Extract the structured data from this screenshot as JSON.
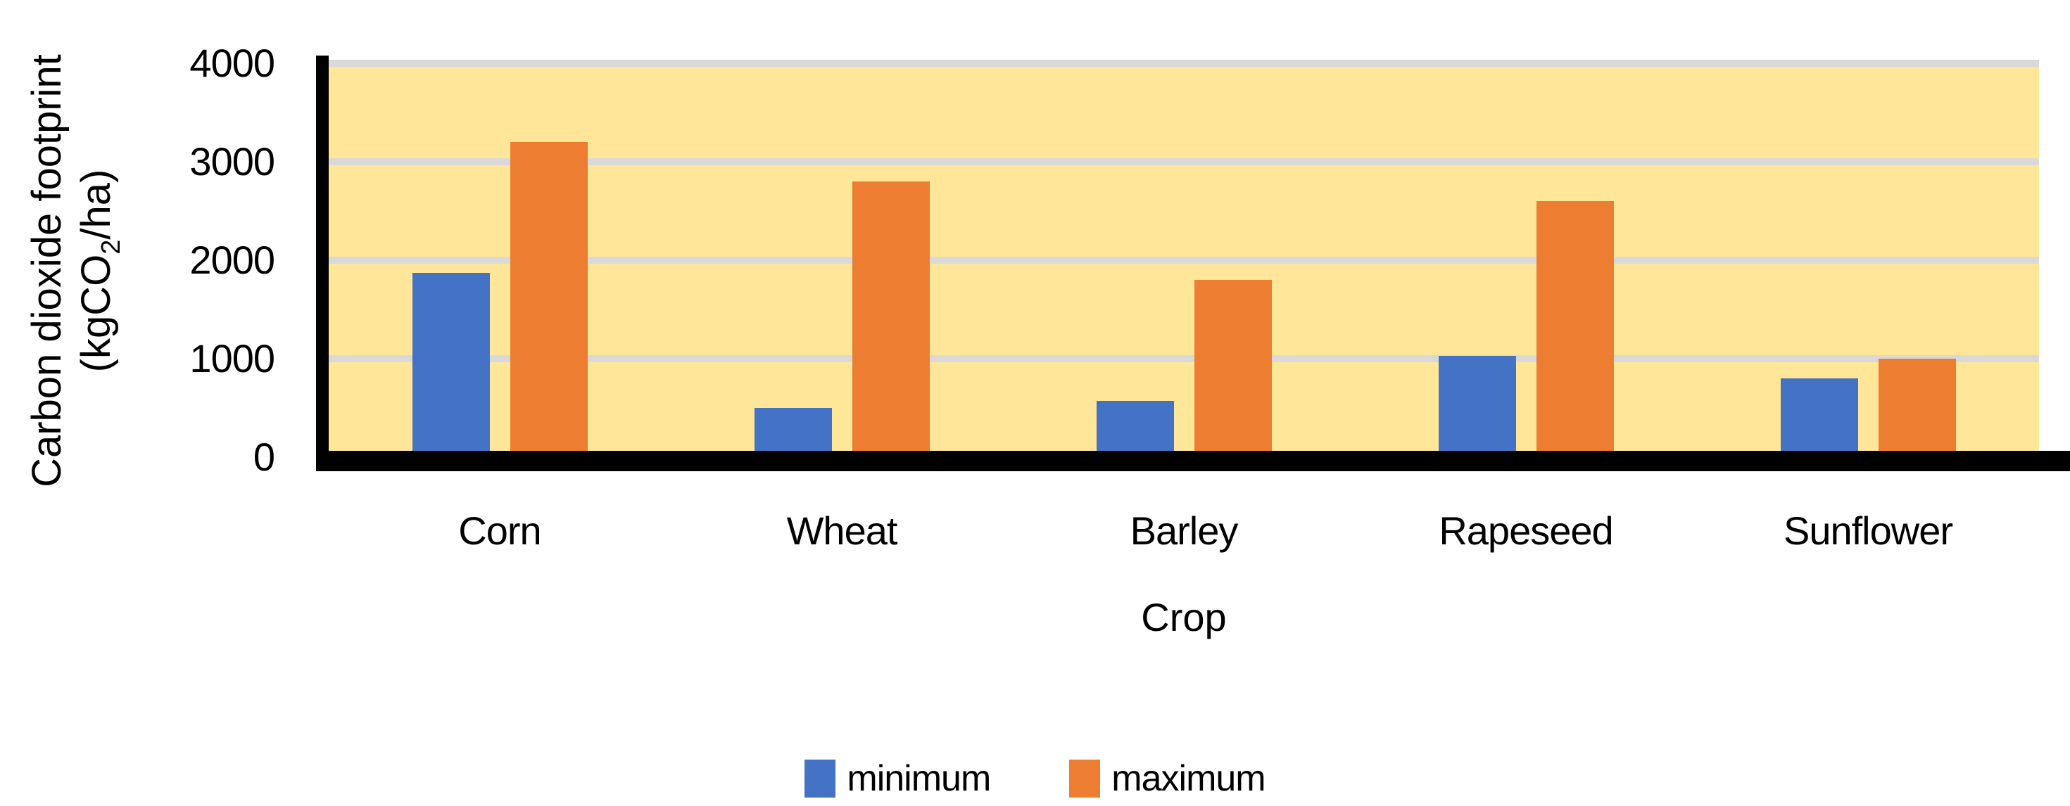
{
  "figure": {
    "ylabel_line1": "Carbon dioxide footprint",
    "ylabel_line2_pre": "(kgCO",
    "ylabel_line2_sub": "2",
    "ylabel_line2_post": "/ha)"
  },
  "chart_data": {
    "type": "bar",
    "title": "",
    "categories": [
      "Corn",
      "Wheat",
      "Barley",
      "Rapeseed",
      "Sunflower"
    ],
    "series": [
      {
        "name": "minimum",
        "color": "#4472C4",
        "values": [
          1870,
          500,
          570,
          1030,
          800
        ]
      },
      {
        "name": "maximum",
        "color": "#ED7D31",
        "values": [
          3200,
          2800,
          1800,
          2600,
          1000
        ]
      }
    ],
    "xlabel": "Crop",
    "ylabel": "Carbon dioxide footprint (kgCO₂/ha)",
    "ylim": [
      0,
      4000
    ],
    "yticks": [
      0,
      1000,
      2000,
      3000,
      4000
    ],
    "grid": "horizontal",
    "legend_position": "bottom-center",
    "plot_bg": "#FFE699",
    "gridline_color": "#D9D9D9",
    "axis_color": "#000000",
    "text_color": "#000000"
  }
}
